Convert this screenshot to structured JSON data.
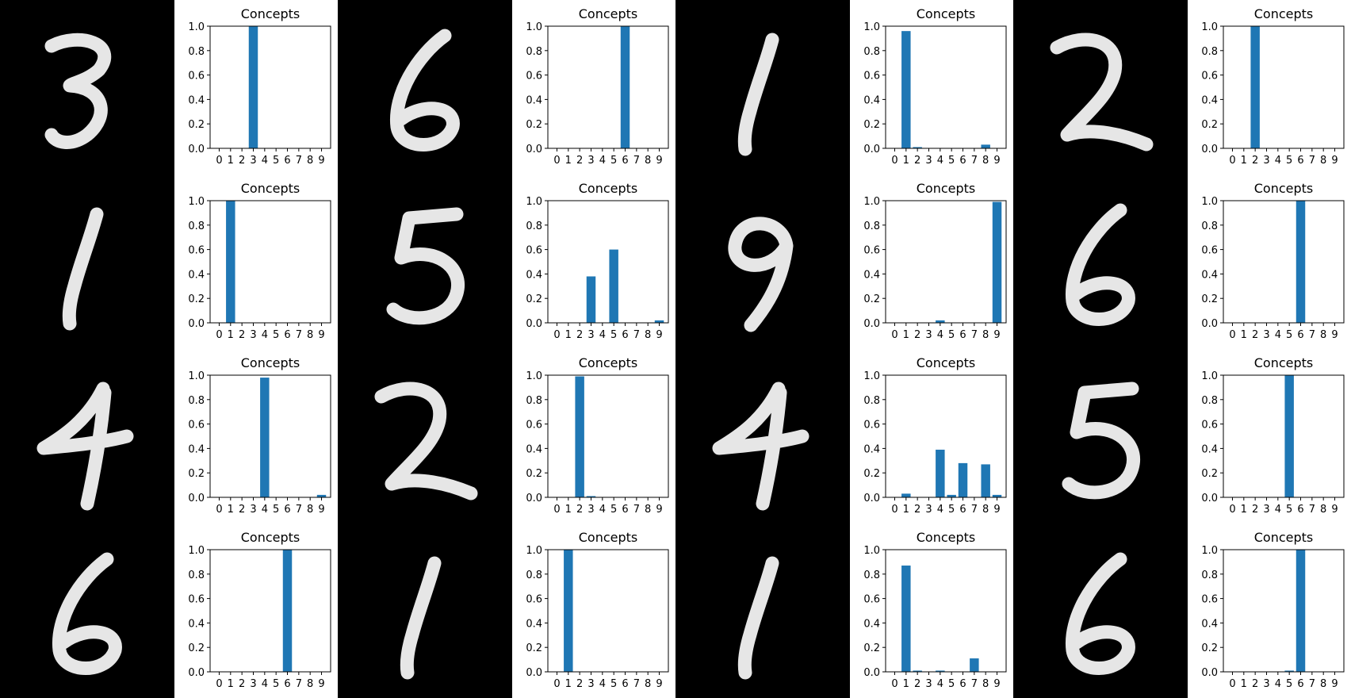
{
  "grid": {
    "rows": 4,
    "cols": 4
  },
  "colors": {
    "bar": "#1f77b4",
    "digit_bg": "#000000",
    "digit_stroke": "#f2f2f2"
  },
  "digit_images": [
    {
      "name": "digit-3-image",
      "digit": 3
    },
    {
      "name": "digit-6-image",
      "digit": 6
    },
    {
      "name": "digit-1-image",
      "digit": 1
    },
    {
      "name": "digit-2-image",
      "digit": 2
    },
    {
      "name": "digit-1-image",
      "digit": 1
    },
    {
      "name": "digit-5-image",
      "digit": 5
    },
    {
      "name": "digit-9-image",
      "digit": 9
    },
    {
      "name": "digit-6-image",
      "digit": 6
    },
    {
      "name": "digit-4-image",
      "digit": 4
    },
    {
      "name": "digit-2-image",
      "digit": 2
    },
    {
      "name": "digit-4-image",
      "digit": 4
    },
    {
      "name": "digit-5-image",
      "digit": 5
    },
    {
      "name": "digit-6-image",
      "digit": 6
    },
    {
      "name": "digit-1-image",
      "digit": 1
    },
    {
      "name": "digit-1-image",
      "digit": 1
    },
    {
      "name": "digit-6-image",
      "digit": 6
    }
  ],
  "chart_data": [
    {
      "type": "bar",
      "title": "Concepts",
      "categories": [
        "0",
        "1",
        "2",
        "3",
        "4",
        "5",
        "6",
        "7",
        "8",
        "9"
      ],
      "values": [
        0,
        0,
        0,
        1.0,
        0,
        0,
        0,
        0,
        0,
        0
      ],
      "ylim": [
        0,
        1
      ],
      "yticks": [
        "0.0",
        "0.2",
        "0.4",
        "0.6",
        "0.8",
        "1.0"
      ],
      "grid": false
    },
    {
      "type": "bar",
      "title": "Concepts",
      "categories": [
        "0",
        "1",
        "2",
        "3",
        "4",
        "5",
        "6",
        "7",
        "8",
        "9"
      ],
      "values": [
        0,
        0,
        0,
        0,
        0,
        0,
        1.0,
        0,
        0,
        0
      ],
      "ylim": [
        0,
        1
      ],
      "yticks": [
        "0.0",
        "0.2",
        "0.4",
        "0.6",
        "0.8",
        "1.0"
      ],
      "grid": false
    },
    {
      "type": "bar",
      "title": "Concepts",
      "categories": [
        "0",
        "1",
        "2",
        "3",
        "4",
        "5",
        "6",
        "7",
        "8",
        "9"
      ],
      "values": [
        0,
        0.96,
        0.01,
        0,
        0,
        0,
        0,
        0,
        0.03,
        0
      ],
      "ylim": [
        0,
        1
      ],
      "yticks": [
        "0.0",
        "0.2",
        "0.4",
        "0.6",
        "0.8",
        "1.0"
      ],
      "grid": false
    },
    {
      "type": "bar",
      "title": "Concepts",
      "categories": [
        "0",
        "1",
        "2",
        "3",
        "4",
        "5",
        "6",
        "7",
        "8",
        "9"
      ],
      "values": [
        0,
        0,
        1.0,
        0,
        0,
        0,
        0,
        0,
        0,
        0
      ],
      "ylim": [
        0,
        1
      ],
      "yticks": [
        "0.0",
        "0.2",
        "0.4",
        "0.6",
        "0.8",
        "1.0"
      ],
      "grid": false
    },
    {
      "type": "bar",
      "title": "Concepts",
      "categories": [
        "0",
        "1",
        "2",
        "3",
        "4",
        "5",
        "6",
        "7",
        "8",
        "9"
      ],
      "values": [
        0,
        1.0,
        0,
        0,
        0,
        0,
        0,
        0,
        0,
        0
      ],
      "ylim": [
        0,
        1
      ],
      "yticks": [
        "0.0",
        "0.2",
        "0.4",
        "0.6",
        "0.8",
        "1.0"
      ],
      "grid": false
    },
    {
      "type": "bar",
      "title": "Concepts",
      "categories": [
        "0",
        "1",
        "2",
        "3",
        "4",
        "5",
        "6",
        "7",
        "8",
        "9"
      ],
      "values": [
        0,
        0,
        0,
        0.38,
        0,
        0.6,
        0,
        0,
        0,
        0.02
      ],
      "ylim": [
        0,
        1
      ],
      "yticks": [
        "0.0",
        "0.2",
        "0.4",
        "0.6",
        "0.8",
        "1.0"
      ],
      "grid": false
    },
    {
      "type": "bar",
      "title": "Concepts",
      "categories": [
        "0",
        "1",
        "2",
        "3",
        "4",
        "5",
        "6",
        "7",
        "8",
        "9"
      ],
      "values": [
        0,
        0,
        0,
        0,
        0.02,
        0,
        0,
        0,
        0,
        0.99
      ],
      "ylim": [
        0,
        1
      ],
      "yticks": [
        "0.0",
        "0.2",
        "0.4",
        "0.6",
        "0.8",
        "1.0"
      ],
      "grid": false
    },
    {
      "type": "bar",
      "title": "Concepts",
      "categories": [
        "0",
        "1",
        "2",
        "3",
        "4",
        "5",
        "6",
        "7",
        "8",
        "9"
      ],
      "values": [
        0,
        0,
        0,
        0,
        0,
        0,
        1.0,
        0,
        0,
        0
      ],
      "ylim": [
        0,
        1
      ],
      "yticks": [
        "0.0",
        "0.2",
        "0.4",
        "0.6",
        "0.8",
        "1.0"
      ],
      "grid": false
    },
    {
      "type": "bar",
      "title": "Concepts",
      "categories": [
        "0",
        "1",
        "2",
        "3",
        "4",
        "5",
        "6",
        "7",
        "8",
        "9"
      ],
      "values": [
        0,
        0,
        0,
        0,
        0.98,
        0,
        0,
        0,
        0,
        0.02
      ],
      "ylim": [
        0,
        1
      ],
      "yticks": [
        "0.0",
        "0.2",
        "0.4",
        "0.6",
        "0.8",
        "1.0"
      ],
      "grid": false
    },
    {
      "type": "bar",
      "title": "Concepts",
      "categories": [
        "0",
        "1",
        "2",
        "3",
        "4",
        "5",
        "6",
        "7",
        "8",
        "9"
      ],
      "values": [
        0,
        0,
        0.99,
        0.01,
        0,
        0,
        0,
        0,
        0,
        0
      ],
      "ylim": [
        0,
        1
      ],
      "yticks": [
        "0.0",
        "0.2",
        "0.4",
        "0.6",
        "0.8",
        "1.0"
      ],
      "grid": false
    },
    {
      "type": "bar",
      "title": "Concepts",
      "categories": [
        "0",
        "1",
        "2",
        "3",
        "4",
        "5",
        "6",
        "7",
        "8",
        "9"
      ],
      "values": [
        0,
        0.03,
        0,
        0,
        0.39,
        0.02,
        0.28,
        0,
        0.27,
        0.02
      ],
      "ylim": [
        0,
        1
      ],
      "yticks": [
        "0.0",
        "0.2",
        "0.4",
        "0.6",
        "0.8",
        "1.0"
      ],
      "grid": false
    },
    {
      "type": "bar",
      "title": "Concepts",
      "categories": [
        "0",
        "1",
        "2",
        "3",
        "4",
        "5",
        "6",
        "7",
        "8",
        "9"
      ],
      "values": [
        0,
        0,
        0,
        0,
        0,
        1.0,
        0,
        0,
        0,
        0
      ],
      "ylim": [
        0,
        1
      ],
      "yticks": [
        "0.0",
        "0.2",
        "0.4",
        "0.6",
        "0.8",
        "1.0"
      ],
      "grid": false
    },
    {
      "type": "bar",
      "title": "Concepts",
      "categories": [
        "0",
        "1",
        "2",
        "3",
        "4",
        "5",
        "6",
        "7",
        "8",
        "9"
      ],
      "values": [
        0,
        0,
        0,
        0,
        0,
        0,
        1.0,
        0,
        0,
        0
      ],
      "ylim": [
        0,
        1
      ],
      "yticks": [
        "0.0",
        "0.2",
        "0.4",
        "0.6",
        "0.8",
        "1.0"
      ],
      "grid": false
    },
    {
      "type": "bar",
      "title": "Concepts",
      "categories": [
        "0",
        "1",
        "2",
        "3",
        "4",
        "5",
        "6",
        "7",
        "8",
        "9"
      ],
      "values": [
        0,
        1.0,
        0,
        0,
        0,
        0,
        0,
        0,
        0,
        0
      ],
      "ylim": [
        0,
        1
      ],
      "yticks": [
        "0.0",
        "0.2",
        "0.4",
        "0.6",
        "0.8",
        "1.0"
      ],
      "grid": false
    },
    {
      "type": "bar",
      "title": "Concepts",
      "categories": [
        "0",
        "1",
        "2",
        "3",
        "4",
        "5",
        "6",
        "7",
        "8",
        "9"
      ],
      "values": [
        0,
        0.87,
        0.01,
        0,
        0.01,
        0,
        0,
        0.11,
        0,
        0
      ],
      "ylim": [
        0,
        1
      ],
      "yticks": [
        "0.0",
        "0.2",
        "0.4",
        "0.6",
        "0.8",
        "1.0"
      ],
      "grid": false
    },
    {
      "type": "bar",
      "title": "Concepts",
      "categories": [
        "0",
        "1",
        "2",
        "3",
        "4",
        "5",
        "6",
        "7",
        "8",
        "9"
      ],
      "values": [
        0,
        0,
        0,
        0,
        0,
        0.01,
        1.0,
        0,
        0,
        0
      ],
      "ylim": [
        0,
        1
      ],
      "yticks": [
        "0.0",
        "0.2",
        "0.4",
        "0.6",
        "0.8",
        "1.0"
      ],
      "grid": false
    }
  ]
}
